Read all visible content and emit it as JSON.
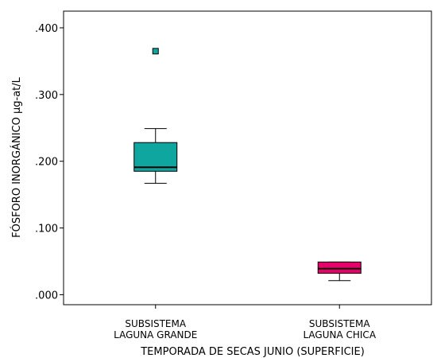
{
  "chart_data": {
    "type": "boxplot",
    "xlabel": "TEMPORADA DE SECAS JUNIO (SUPERFICIE)",
    "ylabel": "FÓSFORO INORGÁNICO µg-at/L",
    "ylim": [
      -0.015,
      0.425
    ],
    "yticks": [
      {
        "value": 0.0,
        "label": ".000"
      },
      {
        "value": 0.1,
        "label": ".100"
      },
      {
        "value": 0.2,
        "label": ".200"
      },
      {
        "value": 0.3,
        "label": ".300"
      },
      {
        "value": 0.4,
        "label": ".400"
      }
    ],
    "grid": false,
    "legend": "none",
    "categories": [
      {
        "line1": "SUBSISTEMA",
        "line2": "LAGUNA GRANDE"
      },
      {
        "line1": "SUBSISTEMA",
        "line2": "LAGUNA CHICA"
      }
    ],
    "boxes": [
      {
        "min": 0.167,
        "q1": 0.185,
        "median": 0.191,
        "q3": 0.228,
        "max": 0.249,
        "outliers": [
          0.365
        ],
        "color": "#0fa6a0"
      },
      {
        "min": 0.021,
        "q1": 0.032,
        "median": 0.039,
        "q3": 0.049,
        "max": 0.049,
        "outliers": [],
        "color": "#e8006a"
      }
    ]
  }
}
